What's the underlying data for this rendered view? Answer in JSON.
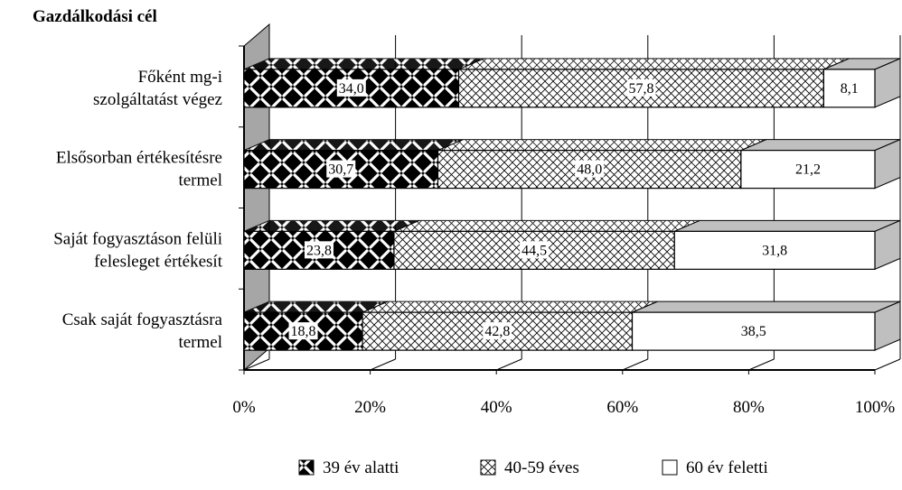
{
  "chart_data": {
    "type": "bar",
    "orientation": "horizontal",
    "stacked": "percent",
    "title": "Gazdálkodási cél",
    "categories": [
      [
        "Főként mg-i",
        "szolgáltatást végez"
      ],
      [
        "Elsősorban értékesítésre",
        "termel"
      ],
      [
        "Saját fogyasztáson felüli",
        "felesleget értékesít"
      ],
      [
        "Csak saját fogyasztásra",
        "termel"
      ]
    ],
    "series": [
      {
        "name": "39 év alatti",
        "values": [
          34.0,
          30.7,
          23.8,
          18.8
        ],
        "labels": [
          "34,0",
          "30,7",
          "23,8",
          "18,8"
        ],
        "pattern": "weave"
      },
      {
        "name": "40-59 éves",
        "values": [
          57.8,
          48.0,
          44.5,
          42.8
        ],
        "labels": [
          "57,8",
          "48,0",
          "44,5",
          "42,8"
        ],
        "pattern": "crosshatch"
      },
      {
        "name": "60 év feletti",
        "values": [
          8.1,
          21.2,
          31.8,
          38.5
        ],
        "labels": [
          "8,1",
          "21,2",
          "31,8",
          "38,5"
        ],
        "pattern": "plain"
      }
    ],
    "x_ticks": [
      "0%",
      "20%",
      "40%",
      "60%",
      "80%",
      "100%"
    ],
    "xlim": [
      0,
      100
    ],
    "grid": true,
    "three_d": true,
    "legend_position": "bottom"
  }
}
